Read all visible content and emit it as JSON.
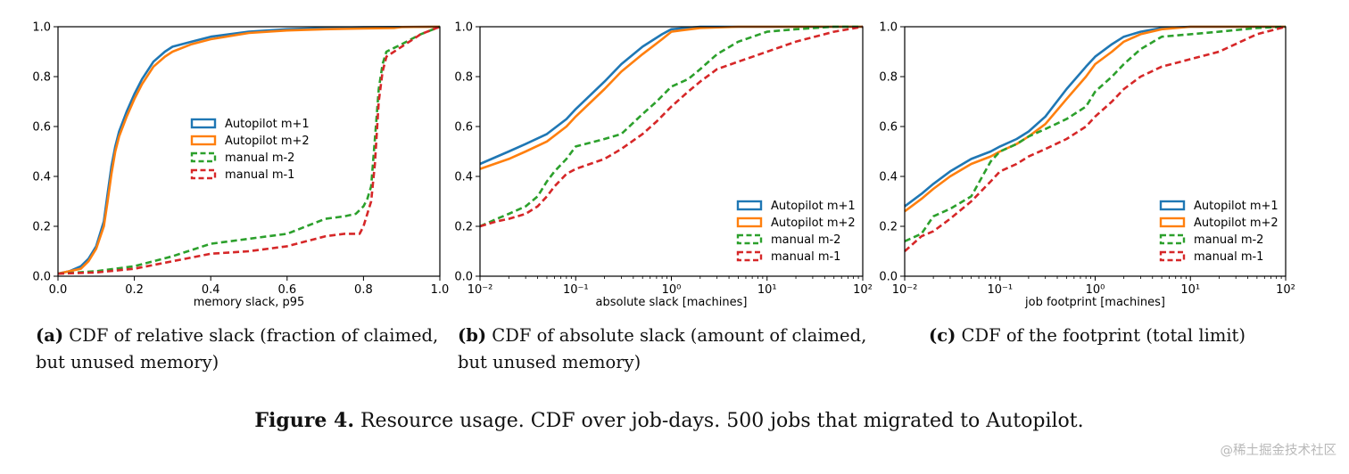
{
  "chart_data": [
    {
      "type": "line",
      "xscale": "linear",
      "xlim": [
        0.0,
        1.0
      ],
      "ylim": [
        0.0,
        1.0
      ],
      "xticks": [
        "0.0",
        "0.2",
        "0.4",
        "0.6",
        "0.8",
        "1.0"
      ],
      "xtick_values": [
        0,
        0.2,
        0.4,
        0.6,
        0.8,
        1.0
      ],
      "yticks": [
        "0.0",
        "0.2",
        "0.4",
        "0.6",
        "0.8",
        "1.0"
      ],
      "xlabel": "memory slack, p95",
      "ylabel": "",
      "legend_position": "center",
      "series": [
        {
          "name": "Autopilot m+1",
          "color": "#1f77b4",
          "dash": false,
          "x": [
            0,
            0.03,
            0.06,
            0.08,
            0.1,
            0.12,
            0.13,
            0.14,
            0.15,
            0.16,
            0.18,
            0.2,
            0.22,
            0.25,
            0.28,
            0.3,
            0.35,
            0.4,
            0.5,
            0.6,
            0.7,
            0.8,
            0.9,
            1.0
          ],
          "y": [
            0.01,
            0.02,
            0.04,
            0.07,
            0.12,
            0.22,
            0.33,
            0.44,
            0.52,
            0.58,
            0.66,
            0.73,
            0.79,
            0.86,
            0.9,
            0.92,
            0.94,
            0.96,
            0.98,
            0.99,
            0.995,
            0.998,
            0.999,
            1.0
          ]
        },
        {
          "name": "Autopilot m+2",
          "color": "#ff7f0e",
          "dash": false,
          "x": [
            0,
            0.03,
            0.06,
            0.08,
            0.1,
            0.12,
            0.13,
            0.14,
            0.15,
            0.16,
            0.18,
            0.2,
            0.22,
            0.25,
            0.28,
            0.3,
            0.35,
            0.4,
            0.5,
            0.6,
            0.7,
            0.8,
            0.88,
            0.9,
            1.0
          ],
          "y": [
            0.01,
            0.02,
            0.03,
            0.06,
            0.11,
            0.2,
            0.3,
            0.41,
            0.5,
            0.56,
            0.64,
            0.71,
            0.77,
            0.84,
            0.88,
            0.9,
            0.93,
            0.95,
            0.975,
            0.985,
            0.99,
            0.993,
            0.995,
            0.999,
            1.0
          ]
        },
        {
          "name": "manual m-2",
          "color": "#2ca02c",
          "dash": true,
          "x": [
            0,
            0.1,
            0.2,
            0.3,
            0.4,
            0.5,
            0.6,
            0.65,
            0.7,
            0.75,
            0.78,
            0.8,
            0.81,
            0.82,
            0.83,
            0.84,
            0.85,
            0.86,
            0.9,
            0.95,
            1.0
          ],
          "y": [
            0.01,
            0.02,
            0.04,
            0.08,
            0.13,
            0.15,
            0.17,
            0.2,
            0.23,
            0.24,
            0.25,
            0.28,
            0.31,
            0.36,
            0.55,
            0.75,
            0.85,
            0.9,
            0.93,
            0.97,
            1.0
          ]
        },
        {
          "name": "manual m-1",
          "color": "#d62728",
          "dash": true,
          "x": [
            0,
            0.1,
            0.2,
            0.3,
            0.4,
            0.5,
            0.6,
            0.65,
            0.7,
            0.75,
            0.79,
            0.8,
            0.81,
            0.82,
            0.83,
            0.84,
            0.85,
            0.86,
            0.9,
            0.95,
            1.0
          ],
          "y": [
            0.01,
            0.015,
            0.03,
            0.06,
            0.09,
            0.1,
            0.12,
            0.14,
            0.16,
            0.17,
            0.17,
            0.2,
            0.25,
            0.3,
            0.45,
            0.7,
            0.82,
            0.88,
            0.92,
            0.97,
            1.0
          ]
        }
      ],
      "caption_label": "(a)",
      "caption_lines": [
        "CDF of relative slack (fraction of claimed,",
        "but unused memory)"
      ]
    },
    {
      "type": "line",
      "xscale": "log",
      "xlim": [
        0.01,
        100
      ],
      "ylim": [
        0.0,
        1.0
      ],
      "xticks": [
        "10⁻²",
        "10⁻¹",
        "10⁰",
        "10¹",
        "10²"
      ],
      "xtick_values": [
        0.01,
        0.1,
        1,
        10,
        100
      ],
      "yticks": [
        "0.0",
        "0.2",
        "0.4",
        "0.6",
        "0.8",
        "1.0"
      ],
      "xlabel": "absolute slack [machines]",
      "ylabel": "",
      "legend_position": "lower-right",
      "series": [
        {
          "name": "Autopilot m+1",
          "color": "#1f77b4",
          "dash": false,
          "x": [
            0.01,
            0.02,
            0.03,
            0.05,
            0.08,
            0.1,
            0.2,
            0.3,
            0.5,
            0.8,
            1,
            2,
            5,
            10,
            100
          ],
          "y": [
            0.45,
            0.5,
            0.53,
            0.57,
            0.63,
            0.67,
            0.78,
            0.85,
            0.92,
            0.97,
            0.99,
            1.0,
            1.0,
            1.0,
            1.0
          ]
        },
        {
          "name": "Autopilot m+2",
          "color": "#ff7f0e",
          "dash": false,
          "x": [
            0.01,
            0.02,
            0.03,
            0.05,
            0.08,
            0.1,
            0.2,
            0.3,
            0.5,
            0.8,
            1,
            2,
            5,
            10,
            100
          ],
          "y": [
            0.43,
            0.47,
            0.5,
            0.54,
            0.6,
            0.64,
            0.75,
            0.82,
            0.89,
            0.95,
            0.98,
            0.995,
            1.0,
            1.0,
            1.0
          ]
        },
        {
          "name": "manual m-2",
          "color": "#2ca02c",
          "dash": true,
          "x": [
            0.01,
            0.015,
            0.02,
            0.03,
            0.04,
            0.05,
            0.06,
            0.08,
            0.1,
            0.2,
            0.3,
            0.5,
            0.7,
            1,
            1.5,
            2,
            3,
            5,
            10,
            20,
            50,
            100
          ],
          "y": [
            0.2,
            0.23,
            0.25,
            0.28,
            0.32,
            0.38,
            0.42,
            0.47,
            0.52,
            0.55,
            0.57,
            0.65,
            0.7,
            0.76,
            0.79,
            0.83,
            0.89,
            0.94,
            0.98,
            0.99,
            1.0,
            1.0
          ]
        },
        {
          "name": "manual m-1",
          "color": "#d62728",
          "dash": true,
          "x": [
            0.01,
            0.015,
            0.02,
            0.03,
            0.04,
            0.05,
            0.06,
            0.08,
            0.1,
            0.2,
            0.3,
            0.5,
            0.7,
            1,
            1.5,
            2,
            3,
            5,
            10,
            20,
            50,
            100
          ],
          "y": [
            0.2,
            0.22,
            0.23,
            0.25,
            0.28,
            0.32,
            0.36,
            0.41,
            0.43,
            0.47,
            0.51,
            0.57,
            0.62,
            0.68,
            0.74,
            0.78,
            0.83,
            0.86,
            0.9,
            0.94,
            0.98,
            1.0
          ]
        }
      ],
      "caption_label": "(b)",
      "caption_lines": [
        "CDF of absolute slack (amount of claimed,",
        "but unused memory)"
      ]
    },
    {
      "type": "line",
      "xscale": "log",
      "xlim": [
        0.01,
        100
      ],
      "ylim": [
        0.0,
        1.0
      ],
      "xticks": [
        "10⁻²",
        "10⁻¹",
        "10⁰",
        "10¹",
        "10²"
      ],
      "xtick_values": [
        0.01,
        0.1,
        1,
        10,
        100
      ],
      "yticks": [
        "0.0",
        "0.2",
        "0.4",
        "0.6",
        "0.8",
        "1.0"
      ],
      "xlabel": "job footprint [machines]",
      "ylabel": "",
      "legend_position": "lower-right",
      "series": [
        {
          "name": "Autopilot m+1",
          "color": "#1f77b4",
          "dash": false,
          "x": [
            0.01,
            0.015,
            0.02,
            0.03,
            0.05,
            0.08,
            0.1,
            0.15,
            0.2,
            0.3,
            0.5,
            0.8,
            1,
            1.5,
            2,
            3,
            5,
            10,
            100
          ],
          "y": [
            0.28,
            0.33,
            0.37,
            0.42,
            0.47,
            0.5,
            0.52,
            0.55,
            0.58,
            0.64,
            0.75,
            0.84,
            0.88,
            0.93,
            0.96,
            0.98,
            0.995,
            1.0,
            1.0
          ]
        },
        {
          "name": "Autopilot m+2",
          "color": "#ff7f0e",
          "dash": false,
          "x": [
            0.01,
            0.015,
            0.02,
            0.03,
            0.05,
            0.08,
            0.1,
            0.15,
            0.2,
            0.3,
            0.5,
            0.8,
            1,
            1.5,
            2,
            3,
            5,
            10,
            100
          ],
          "y": [
            0.26,
            0.31,
            0.35,
            0.4,
            0.45,
            0.48,
            0.5,
            0.53,
            0.56,
            0.61,
            0.71,
            0.8,
            0.85,
            0.9,
            0.94,
            0.97,
            0.99,
            1.0,
            1.0
          ]
        },
        {
          "name": "manual m-2",
          "color": "#2ca02c",
          "dash": true,
          "x": [
            0.01,
            0.015,
            0.02,
            0.03,
            0.05,
            0.08,
            0.1,
            0.15,
            0.2,
            0.3,
            0.5,
            0.8,
            1,
            1.5,
            2,
            3,
            5,
            10,
            20,
            50,
            100
          ],
          "y": [
            0.14,
            0.17,
            0.24,
            0.27,
            0.32,
            0.46,
            0.5,
            0.53,
            0.56,
            0.59,
            0.63,
            0.68,
            0.74,
            0.8,
            0.85,
            0.91,
            0.96,
            0.97,
            0.98,
            0.995,
            1.0
          ]
        },
        {
          "name": "manual m-1",
          "color": "#d62728",
          "dash": true,
          "x": [
            0.01,
            0.015,
            0.02,
            0.03,
            0.05,
            0.08,
            0.1,
            0.15,
            0.2,
            0.3,
            0.5,
            0.8,
            1,
            1.5,
            2,
            3,
            5,
            10,
            20,
            50,
            100
          ],
          "y": [
            0.1,
            0.16,
            0.18,
            0.23,
            0.3,
            0.38,
            0.42,
            0.45,
            0.48,
            0.51,
            0.55,
            0.6,
            0.64,
            0.7,
            0.75,
            0.8,
            0.84,
            0.87,
            0.9,
            0.97,
            1.0
          ]
        }
      ],
      "caption_label": "(c)",
      "caption_lines": [
        "CDF of the footprint (total limit)"
      ]
    }
  ],
  "figure_caption": {
    "label": "Figure 4.",
    "text": "Resource usage. CDF over job-days. 500 jobs that migrated to Autopilot."
  },
  "watermark": "@稀土掘金技术社区"
}
